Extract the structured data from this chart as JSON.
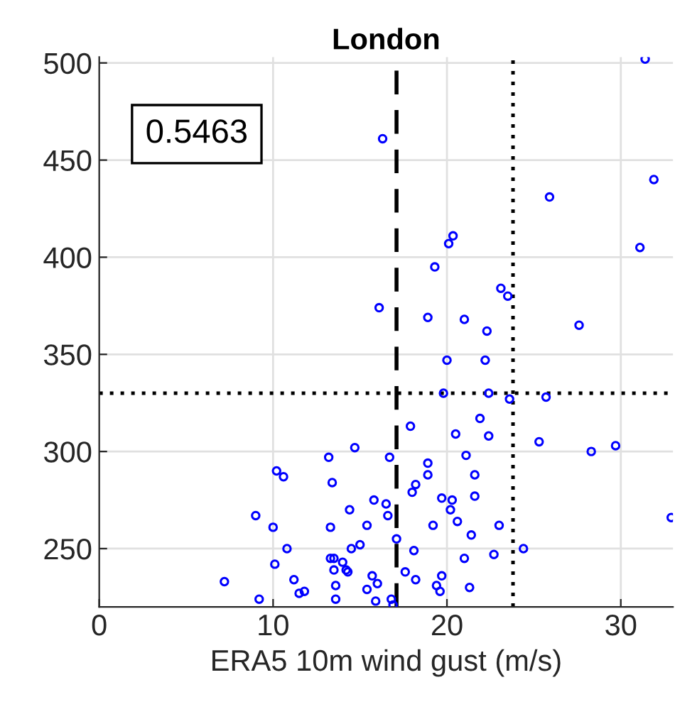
{
  "chart_data": {
    "type": "scatter",
    "title": "London",
    "xlabel": "ERA5 10m wind gust (m/s)",
    "annotations": [
      "0.5463"
    ],
    "xlim": [
      0,
      33
    ],
    "ylim": [
      220,
      503
    ],
    "xticks": [
      0,
      10,
      20,
      30
    ],
    "yticks": [
      250,
      300,
      350,
      400,
      450,
      500
    ],
    "grid": true,
    "marker": "circle",
    "ref_lines": [
      {
        "axis": "x",
        "value": 17.1,
        "line_style": "dashed",
        "color": "#000000"
      },
      {
        "axis": "x",
        "value": 23.8,
        "line_style": "dotted",
        "color": "#000000"
      },
      {
        "axis": "y",
        "value": 330,
        "line_style": "dotted",
        "color": "#000000"
      }
    ],
    "series": [
      {
        "color": "#0000ff",
        "x": [
          31.4,
          16.3,
          31.9,
          25.9,
          20.35,
          20.1,
          31.1,
          19.3,
          23.1,
          23.5,
          16.1,
          18.9,
          21.0,
          27.6,
          22.3,
          20.0,
          22.2,
          19.8,
          22.4,
          23.6,
          25.7,
          17.9,
          21.9,
          20.5,
          22.4,
          25.3,
          28.3,
          29.7,
          16.7,
          21.1,
          18.9,
          18.9,
          21.6,
          18.2,
          18.0,
          21.6,
          15.8,
          19.7,
          20.3,
          16.5,
          20.2,
          16.6,
          20.6,
          19.2,
          23.0,
          15.4,
          32.9,
          21.4,
          17.1,
          18.1,
          24.4,
          21.0,
          22.7,
          17.6,
          19.7,
          15.7,
          18.2,
          16.0,
          19.4,
          15.4,
          19.6,
          21.3,
          15.9,
          16.8,
          16.9,
          14.7,
          13.2,
          10.2,
          10.6,
          13.4,
          14.4,
          9.0,
          10.0,
          13.3,
          10.8,
          14.5,
          15.0,
          10.1,
          13.3,
          13.5,
          14.0,
          13.5,
          14.2,
          14.3,
          7.2,
          11.2,
          13.6,
          11.5,
          11.8,
          9.2,
          13.6
        ],
        "values": [
          502,
          461,
          440,
          431,
          411,
          407,
          405,
          395,
          384,
          380,
          374,
          369,
          368,
          365,
          362,
          347,
          347,
          330,
          330,
          327,
          328,
          313,
          317,
          309,
          308,
          305,
          300,
          303,
          297,
          298,
          294,
          288,
          288,
          283,
          279,
          277,
          275,
          276,
          275,
          273,
          270,
          267,
          264,
          262,
          262,
          262,
          266,
          257,
          255,
          249,
          250,
          245,
          247,
          238,
          236,
          236,
          234,
          232,
          231,
          229,
          228,
          230,
          223,
          224,
          221,
          302,
          297,
          290,
          287,
          284,
          270,
          267,
          261,
          261,
          250,
          250,
          252,
          242,
          245,
          245,
          243,
          239,
          239,
          238,
          233,
          234,
          231,
          227,
          228,
          224,
          224
        ]
      }
    ]
  }
}
